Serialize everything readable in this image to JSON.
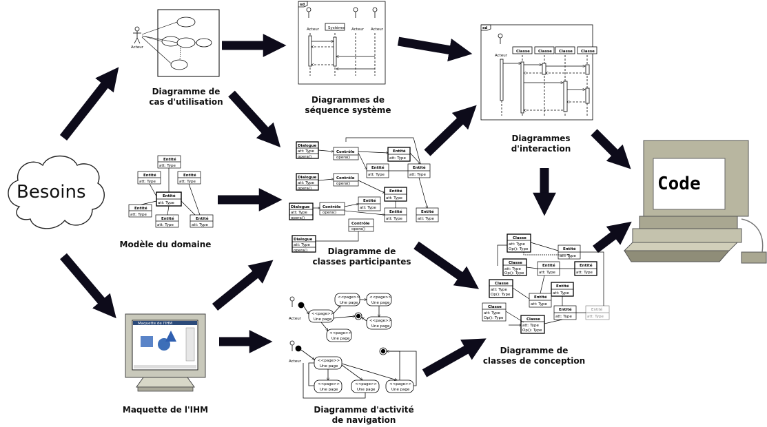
{
  "source": {
    "label": "Besoins"
  },
  "target": {
    "label": "Code"
  },
  "captions": {
    "use_case": [
      "Diagramme de",
      "cas d'utilisation"
    ],
    "domain_model": [
      "Modèle du domaine"
    ],
    "ui_mockup": [
      "Maquette de l'IHM"
    ],
    "system_sequence": [
      "Diagrammes de",
      "séquence système"
    ],
    "participating_classes": [
      "Diagramme de",
      "classes participantes"
    ],
    "navigation_activity": [
      "Diagramme d'activité",
      "de navigation"
    ],
    "interaction": [
      "Diagrammes",
      "d'interaction"
    ],
    "design_classes": [
      "Diagramme de",
      "classes de conception"
    ]
  },
  "thumb_text": {
    "actor": "Acteur",
    "system": "Système",
    "sd": "sd",
    "entity": "Entité",
    "attr": "att: Type",
    "dialogue": "Dialogue",
    "control": "Contrôle",
    "operation": "opera()",
    "class": "Classe",
    "op_type": "Op(): Type",
    "page_stereotype": "<<page>>",
    "page": "Une page",
    "mockup_title": "Maquette de l'IHM"
  }
}
